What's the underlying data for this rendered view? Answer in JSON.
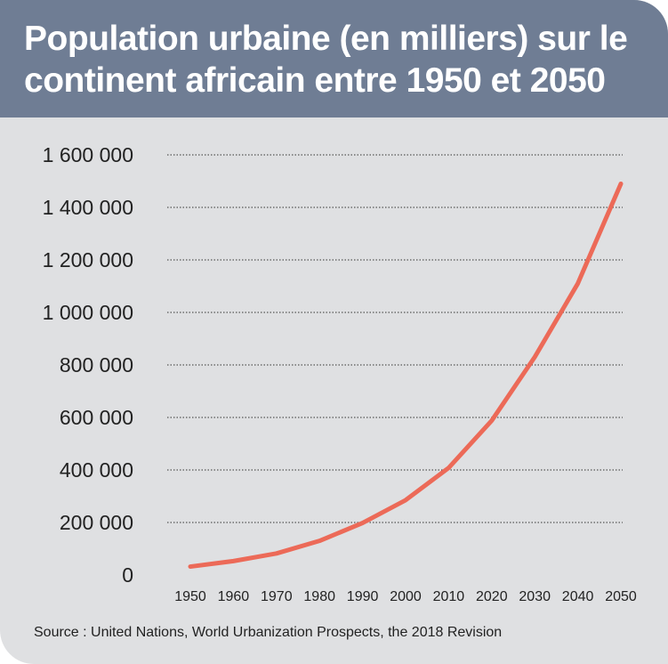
{
  "title": "Population urbaine (en milliers) sur le continent africain entre 1950 et 2050",
  "source": "Source : United Nations, World Urbanization Prospects, the 2018 Revision",
  "colors": {
    "header": "#6f7d94",
    "panel": "#dfe0e2",
    "line": "#ec6a58"
  },
  "chart_data": {
    "type": "line",
    "title": "Population urbaine (en milliers) sur le continent africain entre 1950 et 2050",
    "xlabel": "",
    "ylabel": "",
    "x": [
      1950,
      1960,
      1970,
      1980,
      1990,
      2000,
      2010,
      2020,
      2030,
      2040,
      2050
    ],
    "series": [
      {
        "name": "",
        "values": [
          32000,
          53000,
          82000,
          130000,
          198000,
          285000,
          408000,
          588000,
          830000,
          1110000,
          1490000
        ]
      }
    ],
    "ylim": [
      0,
      1600000
    ],
    "yticks": [
      0,
      200000,
      400000,
      600000,
      800000,
      1000000,
      1200000,
      1400000,
      1600000
    ],
    "ytick_labels": [
      "0",
      "200 000",
      "400 000",
      "600 000",
      "800 000",
      "1 000 000",
      "1 200 000",
      "1 400 000",
      "1 600 000"
    ],
    "xtick_labels": [
      "1950",
      "1960",
      "1970",
      "1980",
      "1990",
      "2000",
      "2010",
      "2020",
      "2030",
      "2040",
      "2050"
    ],
    "grid": true,
    "legend": "none"
  }
}
